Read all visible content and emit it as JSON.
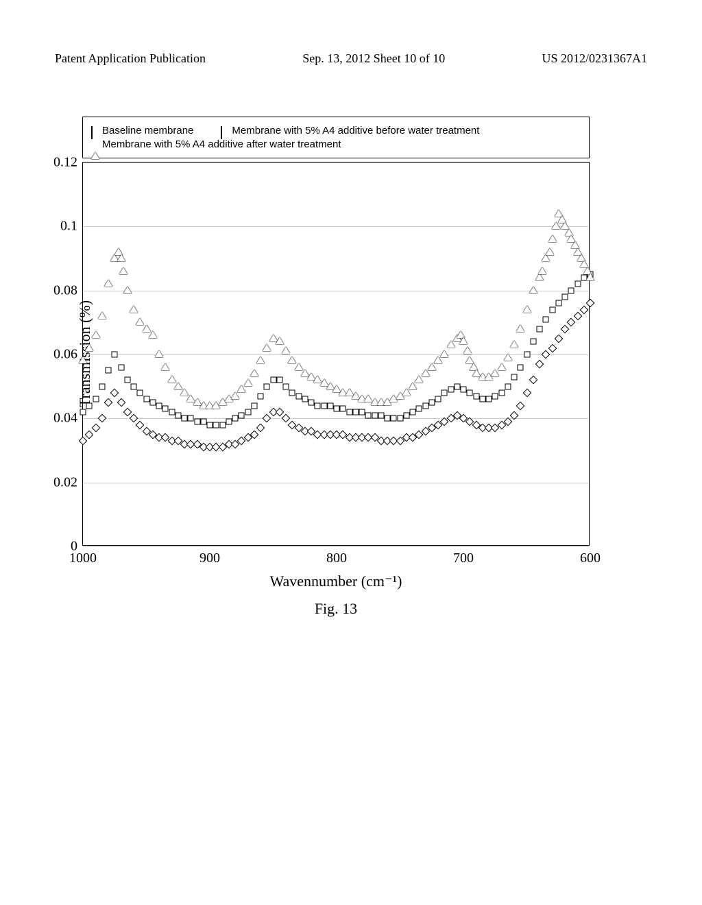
{
  "header": {
    "left": "Patent Application Publication",
    "center": "Sep. 13, 2012  Sheet 10 of 10",
    "right": "US 2012/0231367A1"
  },
  "figure_caption": "Fig. 13",
  "chart": {
    "type": "scatter",
    "x_axis": {
      "title": "Wavennumber (cm⁻¹)",
      "min": 1000,
      "max": 600,
      "ticks": [
        1000,
        900,
        800,
        700,
        600
      ]
    },
    "y_axis": {
      "title": "Transmission (%)",
      "min": 0,
      "max": 0.12,
      "ticks": [
        0,
        0.02,
        0.04,
        0.06,
        0.08,
        0.1,
        0.12
      ]
    },
    "background_color": "#ffffff",
    "grid_color": "#cccccc",
    "legend": {
      "items": [
        {
          "marker": "diamond",
          "label": "Baseline membrane"
        },
        {
          "marker": "square",
          "label": "Membrane with 5% A4 additive before water treatment"
        },
        {
          "marker": "triangle",
          "label": "Membrane with 5% A4 additive after water treatment"
        }
      ]
    },
    "series": [
      {
        "name": "baseline",
        "marker": "diamond",
        "data": [
          [
            1000,
            0.033
          ],
          [
            995,
            0.035
          ],
          [
            990,
            0.037
          ],
          [
            985,
            0.04
          ],
          [
            980,
            0.045
          ],
          [
            975,
            0.048
          ],
          [
            970,
            0.045
          ],
          [
            965,
            0.042
          ],
          [
            960,
            0.04
          ],
          [
            955,
            0.038
          ],
          [
            950,
            0.036
          ],
          [
            945,
            0.035
          ],
          [
            940,
            0.034
          ],
          [
            935,
            0.034
          ],
          [
            930,
            0.033
          ],
          [
            925,
            0.033
          ],
          [
            920,
            0.032
          ],
          [
            915,
            0.032
          ],
          [
            910,
            0.032
          ],
          [
            905,
            0.031
          ],
          [
            900,
            0.031
          ],
          [
            895,
            0.031
          ],
          [
            890,
            0.031
          ],
          [
            885,
            0.032
          ],
          [
            880,
            0.032
          ],
          [
            875,
            0.033
          ],
          [
            870,
            0.034
          ],
          [
            865,
            0.035
          ],
          [
            860,
            0.037
          ],
          [
            855,
            0.04
          ],
          [
            850,
            0.042
          ],
          [
            845,
            0.042
          ],
          [
            840,
            0.04
          ],
          [
            835,
            0.038
          ],
          [
            830,
            0.037
          ],
          [
            825,
            0.036
          ],
          [
            820,
            0.036
          ],
          [
            815,
            0.035
          ],
          [
            810,
            0.035
          ],
          [
            805,
            0.035
          ],
          [
            800,
            0.035
          ],
          [
            795,
            0.035
          ],
          [
            790,
            0.034
          ],
          [
            785,
            0.034
          ],
          [
            780,
            0.034
          ],
          [
            775,
            0.034
          ],
          [
            770,
            0.034
          ],
          [
            765,
            0.033
          ],
          [
            760,
            0.033
          ],
          [
            755,
            0.033
          ],
          [
            750,
            0.033
          ],
          [
            745,
            0.034
          ],
          [
            740,
            0.034
          ],
          [
            735,
            0.035
          ],
          [
            730,
            0.036
          ],
          [
            725,
            0.037
          ],
          [
            720,
            0.038
          ],
          [
            715,
            0.039
          ],
          [
            710,
            0.04
          ],
          [
            705,
            0.041
          ],
          [
            700,
            0.04
          ],
          [
            695,
            0.039
          ],
          [
            690,
            0.038
          ],
          [
            685,
            0.037
          ],
          [
            680,
            0.037
          ],
          [
            675,
            0.037
          ],
          [
            670,
            0.038
          ],
          [
            665,
            0.039
          ],
          [
            660,
            0.041
          ],
          [
            655,
            0.044
          ],
          [
            650,
            0.048
          ],
          [
            645,
            0.052
          ],
          [
            640,
            0.057
          ],
          [
            635,
            0.06
          ],
          [
            630,
            0.062
          ],
          [
            625,
            0.065
          ],
          [
            620,
            0.068
          ],
          [
            615,
            0.07
          ],
          [
            610,
            0.072
          ],
          [
            605,
            0.074
          ],
          [
            600,
            0.076
          ]
        ]
      },
      {
        "name": "before_water",
        "marker": "square",
        "data": [
          [
            1000,
            0.042
          ],
          [
            995,
            0.044
          ],
          [
            990,
            0.046
          ],
          [
            985,
            0.05
          ],
          [
            980,
            0.055
          ],
          [
            975,
            0.06
          ],
          [
            970,
            0.056
          ],
          [
            965,
            0.052
          ],
          [
            960,
            0.05
          ],
          [
            955,
            0.048
          ],
          [
            950,
            0.046
          ],
          [
            945,
            0.045
          ],
          [
            940,
            0.044
          ],
          [
            935,
            0.043
          ],
          [
            930,
            0.042
          ],
          [
            925,
            0.041
          ],
          [
            920,
            0.04
          ],
          [
            915,
            0.04
          ],
          [
            910,
            0.039
          ],
          [
            905,
            0.039
          ],
          [
            900,
            0.038
          ],
          [
            895,
            0.038
          ],
          [
            890,
            0.038
          ],
          [
            885,
            0.039
          ],
          [
            880,
            0.04
          ],
          [
            875,
            0.041
          ],
          [
            870,
            0.042
          ],
          [
            865,
            0.044
          ],
          [
            860,
            0.047
          ],
          [
            855,
            0.05
          ],
          [
            850,
            0.052
          ],
          [
            845,
            0.052
          ],
          [
            840,
            0.05
          ],
          [
            835,
            0.048
          ],
          [
            830,
            0.047
          ],
          [
            825,
            0.046
          ],
          [
            820,
            0.045
          ],
          [
            815,
            0.044
          ],
          [
            810,
            0.044
          ],
          [
            805,
            0.044
          ],
          [
            800,
            0.043
          ],
          [
            795,
            0.043
          ],
          [
            790,
            0.042
          ],
          [
            785,
            0.042
          ],
          [
            780,
            0.042
          ],
          [
            775,
            0.041
          ],
          [
            770,
            0.041
          ],
          [
            765,
            0.041
          ],
          [
            760,
            0.04
          ],
          [
            755,
            0.04
          ],
          [
            750,
            0.04
          ],
          [
            745,
            0.041
          ],
          [
            740,
            0.042
          ],
          [
            735,
            0.043
          ],
          [
            730,
            0.044
          ],
          [
            725,
            0.045
          ],
          [
            720,
            0.046
          ],
          [
            715,
            0.048
          ],
          [
            710,
            0.049
          ],
          [
            705,
            0.05
          ],
          [
            700,
            0.049
          ],
          [
            695,
            0.048
          ],
          [
            690,
            0.047
          ],
          [
            685,
            0.046
          ],
          [
            680,
            0.046
          ],
          [
            675,
            0.047
          ],
          [
            670,
            0.048
          ],
          [
            665,
            0.05
          ],
          [
            660,
            0.053
          ],
          [
            655,
            0.056
          ],
          [
            650,
            0.06
          ],
          [
            645,
            0.064
          ],
          [
            640,
            0.068
          ],
          [
            635,
            0.071
          ],
          [
            630,
            0.074
          ],
          [
            625,
            0.076
          ],
          [
            620,
            0.078
          ],
          [
            615,
            0.08
          ],
          [
            610,
            0.082
          ],
          [
            605,
            0.084
          ],
          [
            600,
            0.085
          ]
        ]
      },
      {
        "name": "after_water",
        "marker": "triangle",
        "data": [
          [
            1000,
            0.058
          ],
          [
            995,
            0.062
          ],
          [
            990,
            0.066
          ],
          [
            985,
            0.072
          ],
          [
            980,
            0.082
          ],
          [
            975,
            0.09
          ],
          [
            972,
            0.092
          ],
          [
            970,
            0.09
          ],
          [
            968,
            0.086
          ],
          [
            965,
            0.08
          ],
          [
            960,
            0.074
          ],
          [
            955,
            0.07
          ],
          [
            950,
            0.068
          ],
          [
            945,
            0.066
          ],
          [
            940,
            0.06
          ],
          [
            935,
            0.056
          ],
          [
            930,
            0.052
          ],
          [
            925,
            0.05
          ],
          [
            920,
            0.048
          ],
          [
            915,
            0.046
          ],
          [
            910,
            0.045
          ],
          [
            905,
            0.044
          ],
          [
            900,
            0.044
          ],
          [
            895,
            0.044
          ],
          [
            890,
            0.045
          ],
          [
            885,
            0.046
          ],
          [
            880,
            0.047
          ],
          [
            875,
            0.049
          ],
          [
            870,
            0.051
          ],
          [
            865,
            0.054
          ],
          [
            860,
            0.058
          ],
          [
            855,
            0.062
          ],
          [
            850,
            0.065
          ],
          [
            845,
            0.064
          ],
          [
            840,
            0.061
          ],
          [
            835,
            0.058
          ],
          [
            830,
            0.056
          ],
          [
            825,
            0.054
          ],
          [
            820,
            0.053
          ],
          [
            815,
            0.052
          ],
          [
            810,
            0.051
          ],
          [
            805,
            0.05
          ],
          [
            800,
            0.049
          ],
          [
            795,
            0.048
          ],
          [
            790,
            0.048
          ],
          [
            785,
            0.047
          ],
          [
            780,
            0.046
          ],
          [
            775,
            0.046
          ],
          [
            770,
            0.045
          ],
          [
            765,
            0.045
          ],
          [
            760,
            0.045
          ],
          [
            755,
            0.046
          ],
          [
            750,
            0.047
          ],
          [
            745,
            0.048
          ],
          [
            740,
            0.05
          ],
          [
            735,
            0.052
          ],
          [
            730,
            0.054
          ],
          [
            725,
            0.056
          ],
          [
            720,
            0.058
          ],
          [
            715,
            0.06
          ],
          [
            710,
            0.063
          ],
          [
            705,
            0.065
          ],
          [
            702,
            0.066
          ],
          [
            700,
            0.064
          ],
          [
            697,
            0.061
          ],
          [
            695,
            0.058
          ],
          [
            692,
            0.056
          ],
          [
            690,
            0.054
          ],
          [
            685,
            0.053
          ],
          [
            680,
            0.053
          ],
          [
            675,
            0.054
          ],
          [
            670,
            0.056
          ],
          [
            665,
            0.059
          ],
          [
            660,
            0.063
          ],
          [
            655,
            0.068
          ],
          [
            650,
            0.074
          ],
          [
            645,
            0.08
          ],
          [
            640,
            0.084
          ],
          [
            638,
            0.086
          ],
          [
            635,
            0.09
          ],
          [
            632,
            0.092
          ],
          [
            630,
            0.096
          ],
          [
            627,
            0.1
          ],
          [
            625,
            0.104
          ],
          [
            622,
            0.102
          ],
          [
            620,
            0.1
          ],
          [
            617,
            0.098
          ],
          [
            615,
            0.096
          ],
          [
            612,
            0.094
          ],
          [
            610,
            0.092
          ],
          [
            607,
            0.09
          ],
          [
            605,
            0.088
          ],
          [
            602,
            0.086
          ],
          [
            600,
            0.084
          ]
        ]
      }
    ]
  }
}
